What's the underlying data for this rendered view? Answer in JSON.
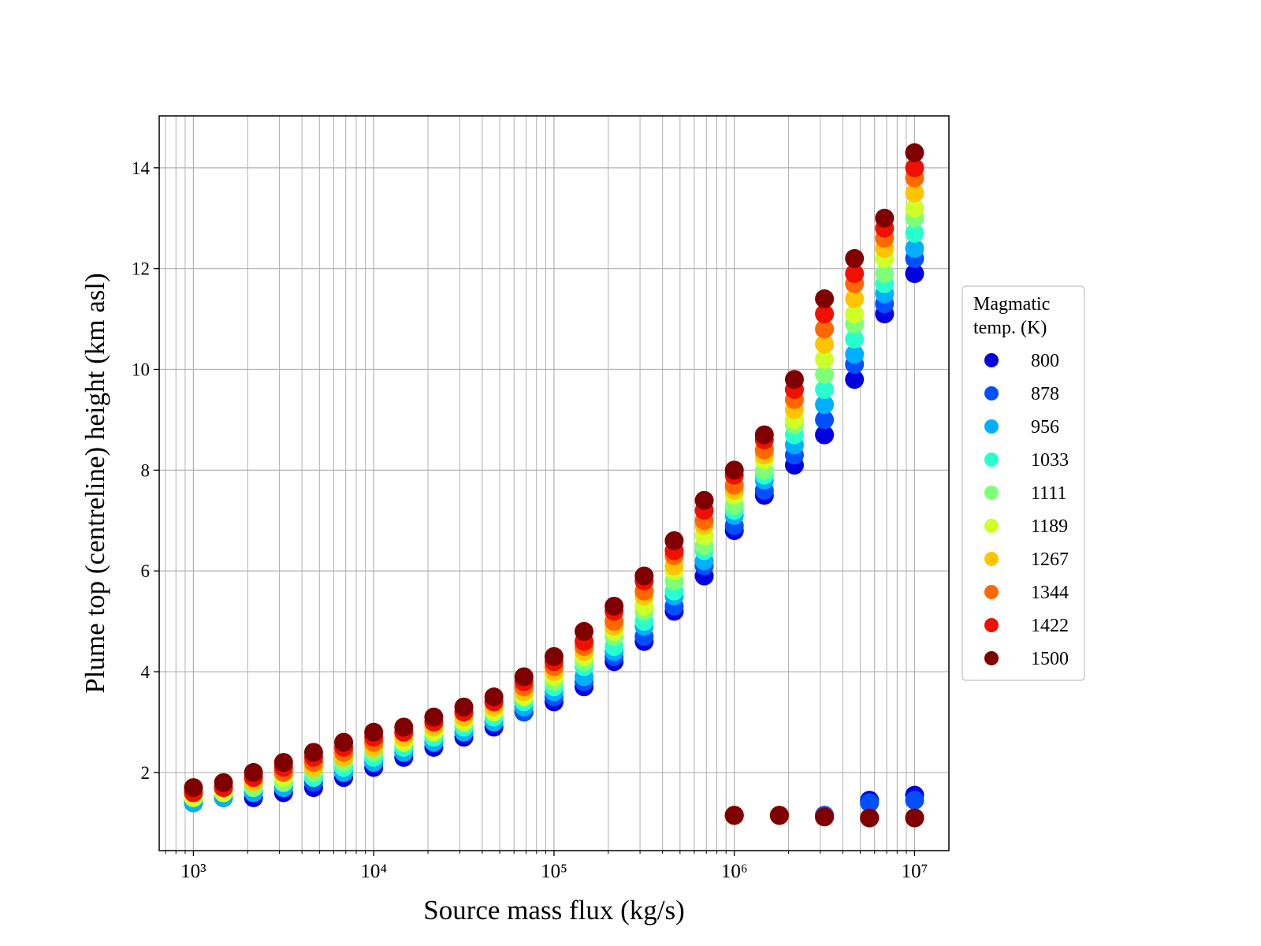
{
  "chart_data": {
    "type": "scatter",
    "xlabel": "Source mass flux (kg/s)",
    "ylabel": "Plume top (centreline) height (km asl)",
    "xscale": "log",
    "grid": true,
    "legend_title": [
      "Magmatic",
      "temp. (K)"
    ],
    "legend_position": "right",
    "xlim": [
      646,
      15500000
    ],
    "ylim": [
      0.45,
      15.03
    ],
    "xticks": [
      {
        "value": 1000,
        "label": "10³"
      },
      {
        "value": 10000,
        "label": "10⁴"
      },
      {
        "value": 100000,
        "label": "10⁵"
      },
      {
        "value": 1000000,
        "label": "10⁶"
      },
      {
        "value": 10000000,
        "label": "10⁷"
      }
    ],
    "xminor_ticks": [
      700,
      800,
      900,
      2000,
      3000,
      4000,
      5000,
      6000,
      7000,
      8000,
      9000,
      20000,
      30000,
      40000,
      50000,
      60000,
      70000,
      80000,
      90000,
      200000,
      300000,
      400000,
      500000,
      600000,
      700000,
      800000,
      900000,
      2000000,
      3000000,
      4000000,
      5000000,
      6000000,
      7000000,
      8000000,
      9000000
    ],
    "yticks": [
      2,
      4,
      6,
      8,
      10,
      12,
      14
    ],
    "x": [
      1000,
      1468,
      2154,
      3162,
      4642,
      6813,
      10000,
      14678,
      21544,
      31623,
      46416,
      68129,
      100000,
      146780,
      215443,
      316228,
      464159,
      681292,
      1000000,
      1467799,
      2154435,
      3162278,
      4641589,
      6812921,
      10000000,
      1000000,
      1778279,
      3162278,
      5623413,
      10000000
    ],
    "series": [
      {
        "name": "800",
        "color": "#0000e0",
        "values": [
          1.4,
          1.5,
          1.5,
          1.6,
          1.7,
          1.9,
          2.1,
          2.3,
          2.5,
          2.7,
          2.9,
          3.2,
          3.4,
          3.7,
          4.2,
          4.6,
          5.2,
          5.9,
          6.8,
          7.5,
          8.1,
          8.7,
          9.8,
          11.1,
          11.9,
          1.15,
          1.15,
          1.15,
          1.45,
          1.55
        ]
      },
      {
        "name": "878",
        "color": "#0050ff",
        "values": [
          1.4,
          1.5,
          1.6,
          1.7,
          1.8,
          2.0,
          2.2,
          2.4,
          2.6,
          2.8,
          3.0,
          3.2,
          3.5,
          3.8,
          4.3,
          4.7,
          5.3,
          6.1,
          6.9,
          7.6,
          8.3,
          9.0,
          10.1,
          11.3,
          12.2,
          1.15,
          1.15,
          1.15,
          1.4,
          1.45
        ]
      },
      {
        "name": "956",
        "color": "#00b0ff",
        "values": [
          1.4,
          1.5,
          1.6,
          1.7,
          1.9,
          2.0,
          2.2,
          2.4,
          2.6,
          2.8,
          3.0,
          3.3,
          3.6,
          3.9,
          4.4,
          4.9,
          5.5,
          6.2,
          7.1,
          7.8,
          8.5,
          9.3,
          10.3,
          11.5,
          12.4,
          1.15,
          1.15,
          1.12,
          1.1,
          1.1
        ]
      },
      {
        "name": "1033",
        "color": "#29ffce",
        "values": [
          1.5,
          1.6,
          1.7,
          1.8,
          1.9,
          2.1,
          2.3,
          2.5,
          2.7,
          2.9,
          3.1,
          3.4,
          3.7,
          4.1,
          4.5,
          5.0,
          5.6,
          6.4,
          7.2,
          7.9,
          8.7,
          9.6,
          10.6,
          11.7,
          12.7,
          1.15,
          1.15,
          1.12,
          1.1,
          1.1
        ]
      },
      {
        "name": "1111",
        "color": "#7dff7a",
        "values": [
          1.5,
          1.6,
          1.7,
          1.8,
          2.0,
          2.2,
          2.4,
          2.6,
          2.8,
          3.0,
          3.2,
          3.5,
          3.8,
          4.2,
          4.7,
          5.2,
          5.8,
          6.5,
          7.3,
          8.0,
          8.9,
          9.9,
          10.9,
          11.9,
          13.0,
          1.15,
          1.15,
          1.12,
          1.1,
          1.1
        ]
      },
      {
        "name": "1189",
        "color": "#ceff29",
        "values": [
          1.5,
          1.6,
          1.8,
          1.9,
          2.1,
          2.3,
          2.5,
          2.6,
          2.8,
          3.0,
          3.2,
          3.5,
          3.9,
          4.3,
          4.8,
          5.3,
          6.0,
          6.7,
          7.5,
          8.2,
          9.0,
          10.2,
          11.1,
          12.2,
          13.2,
          1.15,
          1.15,
          1.12,
          1.1,
          1.1
        ]
      },
      {
        "name": "1267",
        "color": "#ffc400",
        "values": [
          1.6,
          1.7,
          1.8,
          2.0,
          2.1,
          2.3,
          2.5,
          2.7,
          2.9,
          3.1,
          3.3,
          3.6,
          4.0,
          4.4,
          4.9,
          5.5,
          6.1,
          6.9,
          7.6,
          8.3,
          9.2,
          10.5,
          11.4,
          12.4,
          13.5,
          1.15,
          1.15,
          1.12,
          1.1,
          1.1
        ]
      },
      {
        "name": "1344",
        "color": "#ff6800",
        "values": [
          1.6,
          1.7,
          1.9,
          2.0,
          2.2,
          2.4,
          2.6,
          2.8,
          3.0,
          3.2,
          3.4,
          3.7,
          4.1,
          4.5,
          5.0,
          5.6,
          6.3,
          7.0,
          7.7,
          8.4,
          9.4,
          10.8,
          11.7,
          12.6,
          13.8,
          1.15,
          1.15,
          1.12,
          1.1,
          1.1
        ]
      },
      {
        "name": "1422",
        "color": "#f01000",
        "values": [
          1.6,
          1.7,
          1.9,
          2.1,
          2.3,
          2.5,
          2.7,
          2.8,
          3.0,
          3.2,
          3.4,
          3.8,
          4.2,
          4.6,
          5.2,
          5.8,
          6.4,
          7.2,
          7.9,
          8.6,
          9.6,
          11.1,
          11.9,
          12.8,
          14.0,
          1.15,
          1.15,
          1.12,
          1.1,
          1.1
        ]
      },
      {
        "name": "1500",
        "color": "#800000",
        "values": [
          1.7,
          1.8,
          2.0,
          2.2,
          2.4,
          2.6,
          2.8,
          2.9,
          3.1,
          3.3,
          3.5,
          3.9,
          4.3,
          4.8,
          5.3,
          5.9,
          6.6,
          7.4,
          8.0,
          8.7,
          9.8,
          11.4,
          12.2,
          13.0,
          14.3,
          1.15,
          1.15,
          1.12,
          1.1,
          1.1
        ]
      }
    ]
  }
}
